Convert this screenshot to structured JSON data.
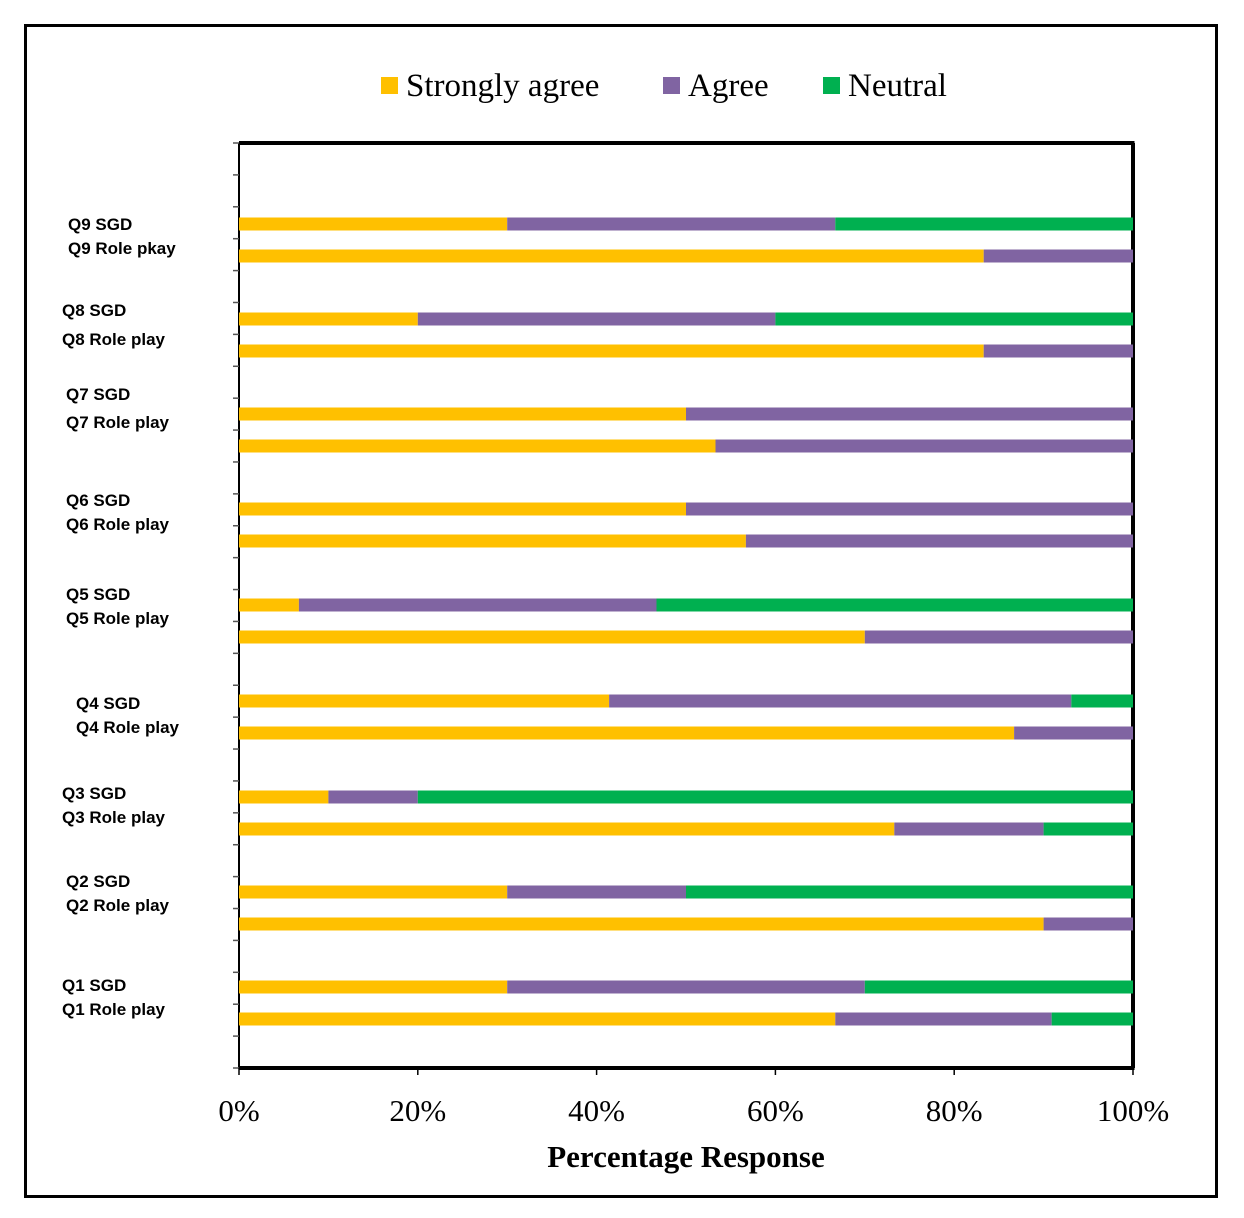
{
  "chart_data": {
    "type": "bar",
    "orientation": "horizontal",
    "stacked": "100%",
    "xlabel": "Percentage Response",
    "ylabel": "",
    "xlim": [
      0,
      100
    ],
    "x_ticks": [
      "0%",
      "20%",
      "40%",
      "60%",
      "80%",
      "100%"
    ],
    "legend_position": "top",
    "grid": false,
    "categories": [
      "Q9 SGD",
      "Q9 Role pkay",
      "Q8 SGD",
      "Q8 Role play",
      "Q7 SGD",
      "Q7 Role play",
      "Q6 SGD",
      "Q6 Role play",
      "Q5 SGD",
      "Q5 Role play",
      "Q4 SGD",
      "Q4 Role play",
      "Q3 SGD",
      "Q3 Role play",
      "Q2 SGD",
      "Q2 Role play",
      "Q1 SGD",
      "Q1 Role play"
    ],
    "series": [
      {
        "name": "Strongly agree",
        "color": "#FFC000",
        "values": [
          30,
          83.3,
          20,
          83.3,
          50,
          53.3,
          50,
          56.7,
          6.7,
          70,
          41.4,
          86.7,
          10,
          73.3,
          30,
          90,
          30,
          66.7
        ]
      },
      {
        "name": "Agree",
        "color": "#8064A2",
        "values": [
          36.7,
          16.7,
          40,
          16.7,
          50,
          46.7,
          50,
          43.3,
          40,
          30,
          51.7,
          13.3,
          10,
          16.7,
          20,
          10,
          40,
          24.2
        ]
      },
      {
        "name": "Neutral",
        "color": "#00B050",
        "values": [
          33.3,
          0,
          40,
          0,
          0,
          0,
          0,
          0,
          53.3,
          0,
          6.9,
          0,
          80,
          10,
          50,
          0,
          30,
          9.1
        ]
      }
    ]
  }
}
